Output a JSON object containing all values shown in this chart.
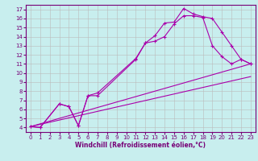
{
  "title": "",
  "xlabel": "Windchill (Refroidissement éolien,°C)",
  "background_color": "#c8eeee",
  "line_color": "#aa00aa",
  "grid_color": "#bbbbbb",
  "xlim": [
    -0.5,
    23.5
  ],
  "ylim": [
    3.5,
    17.5
  ],
  "xticks": [
    0,
    1,
    2,
    3,
    4,
    5,
    6,
    7,
    8,
    9,
    10,
    11,
    12,
    13,
    14,
    15,
    16,
    17,
    18,
    19,
    20,
    21,
    22,
    23
  ],
  "yticks": [
    4,
    5,
    6,
    7,
    8,
    9,
    10,
    11,
    12,
    13,
    14,
    15,
    16,
    17
  ],
  "line1_x": [
    0,
    1,
    3,
    4,
    5,
    6,
    7,
    11,
    12,
    13,
    14,
    15,
    16,
    17,
    18,
    19,
    20,
    21,
    22,
    23
  ],
  "line1_y": [
    4.1,
    4.0,
    6.6,
    6.3,
    4.2,
    7.5,
    7.8,
    11.6,
    13.3,
    14.1,
    15.5,
    15.6,
    17.1,
    16.5,
    16.2,
    16.0,
    14.5,
    13.0,
    11.5,
    11.0
  ],
  "line2_x": [
    0,
    1,
    3,
    4,
    5,
    6,
    7,
    11,
    12,
    13,
    14,
    15,
    16,
    17,
    18,
    19,
    20,
    21,
    22,
    23
  ],
  "line2_y": [
    4.1,
    4.0,
    6.6,
    6.3,
    4.2,
    7.5,
    7.5,
    11.5,
    13.3,
    13.5,
    14.0,
    15.4,
    16.3,
    16.3,
    16.1,
    13.0,
    11.8,
    11.0,
    11.5,
    11.0
  ],
  "line3_x": [
    0,
    23
  ],
  "line3_y": [
    4.1,
    9.6
  ],
  "line4_x": [
    0,
    23
  ],
  "line4_y": [
    4.1,
    11.0
  ],
  "xlabel_fontsize": 5.5,
  "tick_fontsize": 5,
  "tick_color": "#770077",
  "spine_color": "#770077"
}
